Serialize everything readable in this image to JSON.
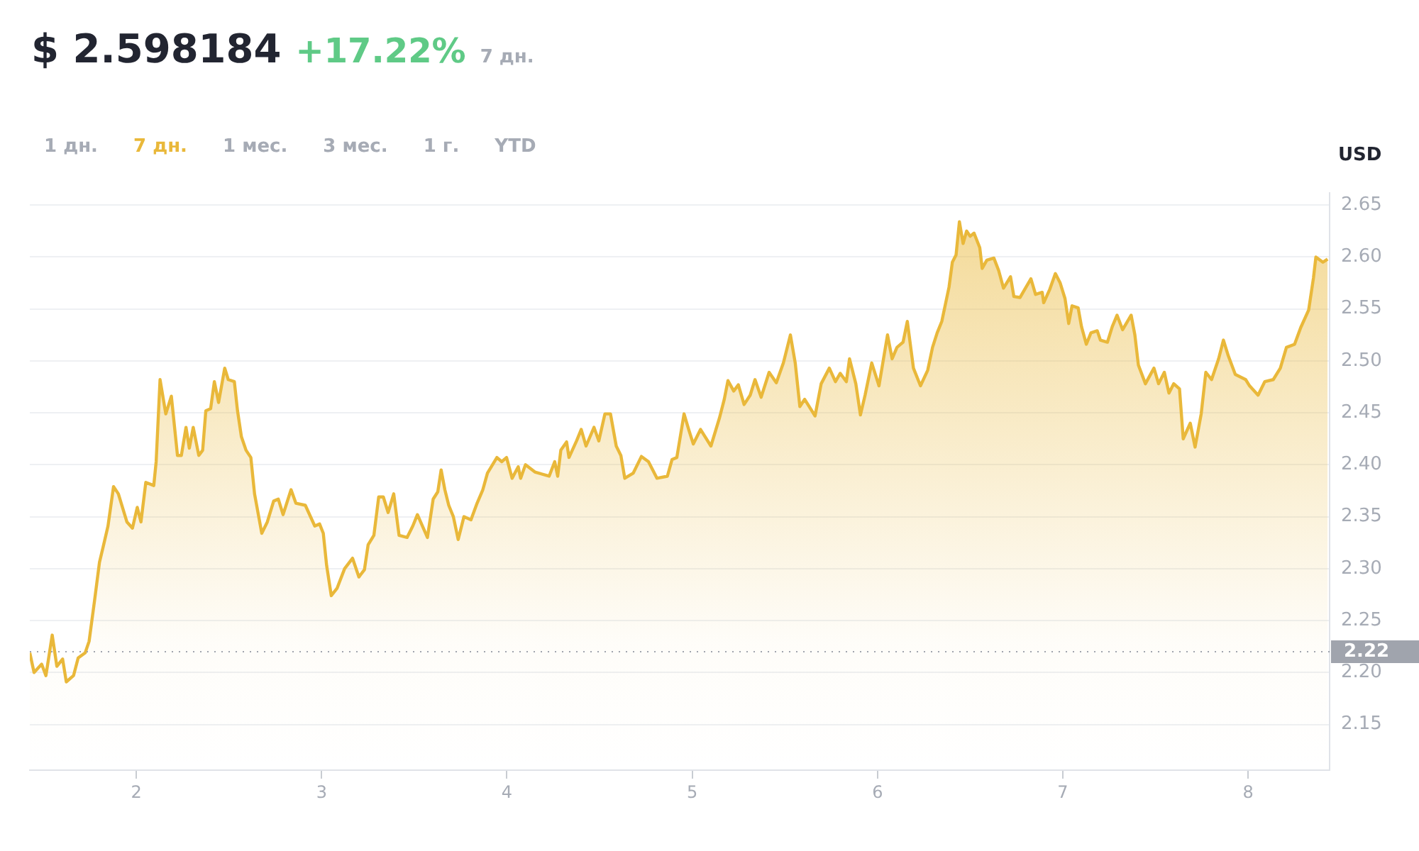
{
  "chart_data": {
    "type": "area",
    "title": "$ 2.598184",
    "subtitle": "+17.22%",
    "ylabel": "USD",
    "annotations": [
      "7 дн.",
      "1 дн.",
      "7 дн.",
      "1 мес.",
      "3 мес.",
      "1 г.",
      "YTD"
    ],
    "xlim": [
      1.425,
      8.44
    ],
    "xticks": [
      2,
      3,
      4,
      5,
      6,
      7,
      8
    ],
    "ylim": [
      2.106,
      2.662
    ],
    "yticks": [
      2.15,
      {
        "value": 2.2,
        "label": "2.20"
      },
      2.25,
      {
        "value": 2.3,
        "label": "2.30"
      },
      2.35,
      {
        "value": 2.4,
        "label": "2.40"
      },
      2.45,
      {
        "value": 2.5,
        "label": "2.50"
      },
      2.55,
      {
        "value": 2.6,
        "label": "2.60"
      },
      2.65
    ],
    "grid": "y",
    "legend": false,
    "ref_lines": [
      {
        "axis": "y",
        "value": 2.22,
        "label": "2.22",
        "line_style": "dotted",
        "color": "#a0a4ad"
      }
    ],
    "series": [
      {
        "color": "#e9b83a",
        "x": [
          1.425,
          1.448,
          1.489,
          1.512,
          1.546,
          1.571,
          1.602,
          1.622,
          1.661,
          1.686,
          1.724,
          1.745,
          1.775,
          1.801,
          1.821,
          1.847,
          1.877,
          1.903,
          1.949,
          1.979,
          2.005,
          2.025,
          2.051,
          2.094,
          2.107,
          2.128,
          2.159,
          2.189,
          2.222,
          2.243,
          2.268,
          2.286,
          2.307,
          2.337,
          2.358,
          2.375,
          2.401,
          2.421,
          2.444,
          2.477,
          2.496,
          2.529,
          2.546,
          2.567,
          2.592,
          2.618,
          2.638,
          2.677,
          2.707,
          2.741,
          2.766,
          2.792,
          2.835,
          2.861,
          2.912,
          2.963,
          2.989,
          3.009,
          3.027,
          3.052,
          3.083,
          3.124,
          3.167,
          3.201,
          3.231,
          3.251,
          3.282,
          3.308,
          3.333,
          3.359,
          3.389,
          3.418,
          3.461,
          3.492,
          3.517,
          3.571,
          3.602,
          3.627,
          3.645,
          3.665,
          3.686,
          3.711,
          3.737,
          3.768,
          3.806,
          3.839,
          3.87,
          3.895,
          3.946,
          3.972,
          3.998,
          4.028,
          4.061,
          4.074,
          4.1,
          4.151,
          4.228,
          4.258,
          4.274,
          4.291,
          4.322,
          4.335,
          4.376,
          4.401,
          4.427,
          4.47,
          4.496,
          4.529,
          4.559,
          4.59,
          4.615,
          4.636,
          4.682,
          4.726,
          4.764,
          4.81,
          4.866,
          4.891,
          4.917,
          4.956,
          4.981,
          5.006,
          5.045,
          5.101,
          5.147,
          5.173,
          5.193,
          5.224,
          5.249,
          5.28,
          5.313,
          5.339,
          5.372,
          5.415,
          5.454,
          5.492,
          5.53,
          5.556,
          5.581,
          5.607,
          5.663,
          5.696,
          5.74,
          5.773,
          5.799,
          5.832,
          5.849,
          5.883,
          5.908,
          5.933,
          5.969,
          6.008,
          6.054,
          6.079,
          6.105,
          6.138,
          6.161,
          6.194,
          6.232,
          6.271,
          6.297,
          6.322,
          6.347,
          6.386,
          6.404,
          6.424,
          6.442,
          6.462,
          6.481,
          6.5,
          6.521,
          6.552,
          6.565,
          6.59,
          6.628,
          6.654,
          6.68,
          6.718,
          6.736,
          6.769,
          6.795,
          6.828,
          6.853,
          6.889,
          6.897,
          6.93,
          6.96,
          6.986,
          7.012,
          7.032,
          7.05,
          7.083,
          7.101,
          7.127,
          7.152,
          7.186,
          7.203,
          7.241,
          7.267,
          7.293,
          7.323,
          7.369,
          7.389,
          7.408,
          7.446,
          7.492,
          7.517,
          7.548,
          7.573,
          7.599,
          7.63,
          7.65,
          7.688,
          7.714,
          7.747,
          7.772,
          7.803,
          7.841,
          7.867,
          7.893,
          7.931,
          7.987,
          8.008,
          8.054,
          8.09,
          8.136,
          8.174,
          8.207,
          8.251,
          8.284,
          8.327,
          8.353,
          8.366,
          8.404,
          8.429
        ],
        "values": [
          2.219,
          2.2,
          2.208,
          2.197,
          2.236,
          2.206,
          2.213,
          2.191,
          2.197,
          2.214,
          2.219,
          2.23,
          2.27,
          2.306,
          2.321,
          2.341,
          2.379,
          2.372,
          2.345,
          2.339,
          2.359,
          2.345,
          2.383,
          2.38,
          2.403,
          2.482,
          2.449,
          2.466,
          2.409,
          2.409,
          2.436,
          2.416,
          2.436,
          2.409,
          2.414,
          2.452,
          2.454,
          2.48,
          2.46,
          2.493,
          2.482,
          2.48,
          2.452,
          2.427,
          2.414,
          2.407,
          2.372,
          2.334,
          2.345,
          2.365,
          2.367,
          2.352,
          2.376,
          2.363,
          2.361,
          2.341,
          2.343,
          2.334,
          2.303,
          2.274,
          2.281,
          2.3,
          2.31,
          2.292,
          2.299,
          2.323,
          2.332,
          2.369,
          2.369,
          2.354,
          2.372,
          2.332,
          2.33,
          2.341,
          2.352,
          2.33,
          2.367,
          2.374,
          2.395,
          2.376,
          2.361,
          2.35,
          2.328,
          2.35,
          2.347,
          2.363,
          2.376,
          2.392,
          2.407,
          2.403,
          2.407,
          2.387,
          2.398,
          2.387,
          2.4,
          2.393,
          2.389,
          2.403,
          2.389,
          2.414,
          2.422,
          2.407,
          2.423,
          2.434,
          2.418,
          2.436,
          2.423,
          2.449,
          2.449,
          2.418,
          2.409,
          2.387,
          2.392,
          2.408,
          2.403,
          2.387,
          2.389,
          2.405,
          2.407,
          2.449,
          2.434,
          2.42,
          2.434,
          2.418,
          2.445,
          2.463,
          2.481,
          2.471,
          2.477,
          2.458,
          2.467,
          2.482,
          2.465,
          2.489,
          2.479,
          2.498,
          2.525,
          2.498,
          2.456,
          2.463,
          2.447,
          2.478,
          2.493,
          2.48,
          2.488,
          2.48,
          2.502,
          2.478,
          2.448,
          2.467,
          2.498,
          2.476,
          2.525,
          2.502,
          2.513,
          2.518,
          2.538,
          2.493,
          2.476,
          2.491,
          2.513,
          2.527,
          2.538,
          2.571,
          2.595,
          2.602,
          2.634,
          2.613,
          2.625,
          2.62,
          2.623,
          2.609,
          2.589,
          2.597,
          2.599,
          2.587,
          2.57,
          2.581,
          2.562,
          2.561,
          2.569,
          2.579,
          2.564,
          2.566,
          2.556,
          2.569,
          2.584,
          2.575,
          2.56,
          2.536,
          2.553,
          2.551,
          2.533,
          2.516,
          2.527,
          2.529,
          2.52,
          2.518,
          2.533,
          2.544,
          2.53,
          2.544,
          2.525,
          2.496,
          2.478,
          2.493,
          2.478,
          2.489,
          2.469,
          2.478,
          2.473,
          2.425,
          2.44,
          2.417,
          2.449,
          2.489,
          2.482,
          2.502,
          2.52,
          2.505,
          2.487,
          2.482,
          2.476,
          2.467,
          2.48,
          2.482,
          2.493,
          2.513,
          2.516,
          2.532,
          2.549,
          2.58,
          2.6,
          2.595,
          2.598
        ]
      }
    ]
  }
}
